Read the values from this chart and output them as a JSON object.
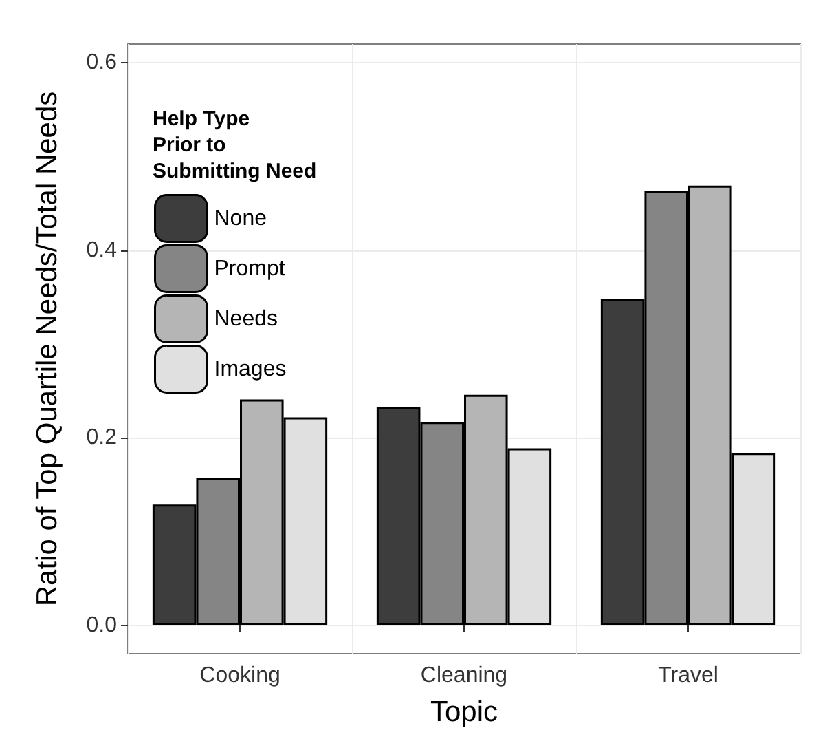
{
  "chart_data": {
    "type": "bar",
    "xlabel": "Topic",
    "ylabel": "Ratio of Top Quartile Needs/Total Needs",
    "legend_title": "Help Type\nPrior to\nSubmitting Need",
    "categories": [
      "Cooking",
      "Cleaning",
      "Travel"
    ],
    "series": [
      {
        "name": "None",
        "color": "#3d3d3d",
        "values": [
          0.129,
          0.233,
          0.348
        ]
      },
      {
        "name": "Prompt",
        "color": "#858585",
        "values": [
          0.157,
          0.217,
          0.463
        ]
      },
      {
        "name": "Needs",
        "color": "#b5b5b5",
        "values": [
          0.241,
          0.246,
          0.469
        ]
      },
      {
        "name": "Images",
        "color": "#e0e0e0",
        "values": [
          0.222,
          0.189,
          0.184
        ]
      }
    ],
    "ylim": [
      -0.03,
      0.62
    ],
    "yticks": [
      {
        "value": 0,
        "label": "0.0"
      },
      {
        "value": 0.2,
        "label": "0.2"
      },
      {
        "value": 0.4,
        "label": "0.4"
      },
      {
        "value": 0.6,
        "label": "0.6"
      }
    ],
    "grid": true,
    "legend": "top left"
  }
}
